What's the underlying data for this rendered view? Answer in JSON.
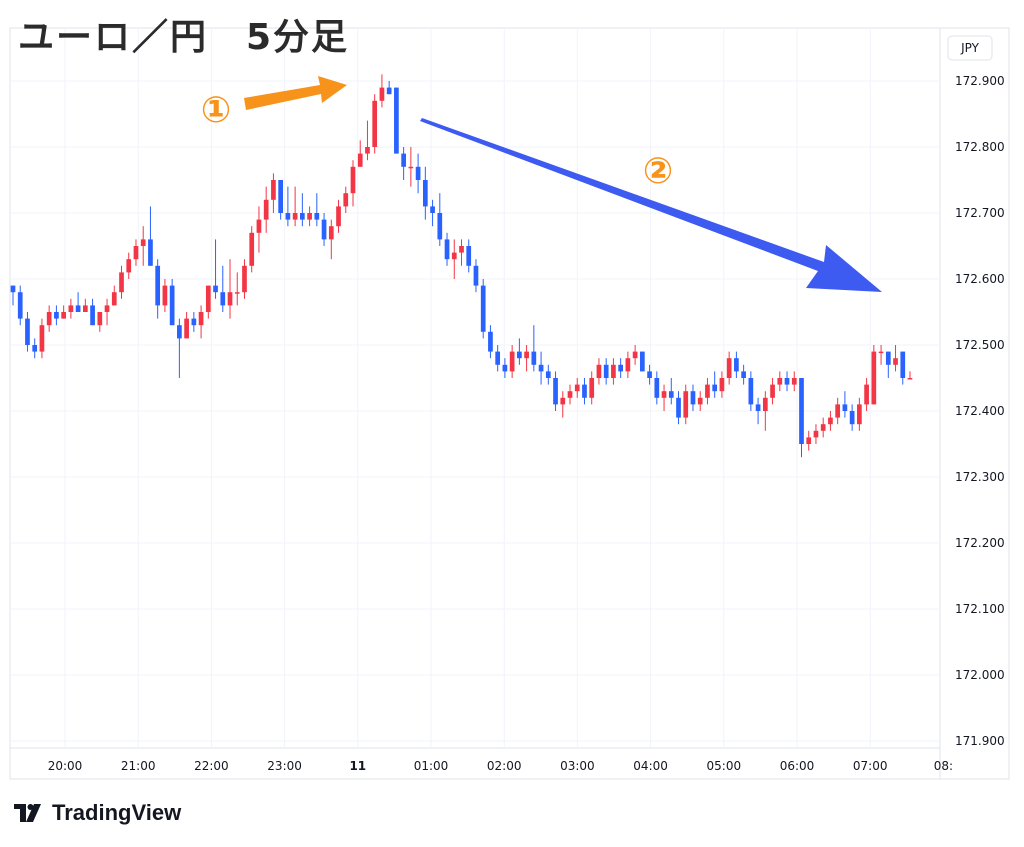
{
  "chart_data": {
    "type": "candlestick",
    "title": "ユーロ／円　5分足",
    "currency": "JPY",
    "ylim": [
      171.85,
      172.95
    ],
    "y_ticks": [
      "172.900",
      "172.800",
      "172.700",
      "172.600",
      "172.500",
      "172.400",
      "172.300",
      "172.200",
      "172.100",
      "172.000",
      "171.900"
    ],
    "x_ticks": [
      "20:00",
      "21:00",
      "22:00",
      "23:00",
      "11",
      "01:00",
      "02:00",
      "03:00",
      "04:00",
      "05:00",
      "06:00",
      "07:00",
      "08:"
    ],
    "up_color": "#f23645",
    "down_color": "#2962ff",
    "candles": [
      [
        172.59,
        172.59,
        172.56,
        172.58
      ],
      [
        172.58,
        172.59,
        172.53,
        172.54
      ],
      [
        172.54,
        172.55,
        172.49,
        172.5
      ],
      [
        172.5,
        172.51,
        172.48,
        172.49
      ],
      [
        172.49,
        172.54,
        172.48,
        172.53
      ],
      [
        172.53,
        172.56,
        172.52,
        172.55
      ],
      [
        172.55,
        172.56,
        172.53,
        172.54
      ],
      [
        172.54,
        172.56,
        172.54,
        172.55
      ],
      [
        172.55,
        172.57,
        172.54,
        172.56
      ],
      [
        172.56,
        172.58,
        172.55,
        172.55
      ],
      [
        172.55,
        172.57,
        172.55,
        172.56
      ],
      [
        172.56,
        172.57,
        172.53,
        172.53
      ],
      [
        172.53,
        172.55,
        172.52,
        172.55
      ],
      [
        172.55,
        172.57,
        172.53,
        172.56
      ],
      [
        172.56,
        172.59,
        172.56,
        172.58
      ],
      [
        172.58,
        172.62,
        172.57,
        172.61
      ],
      [
        172.61,
        172.64,
        172.6,
        172.63
      ],
      [
        172.63,
        172.66,
        172.62,
        172.65
      ],
      [
        172.65,
        172.68,
        172.62,
        172.66
      ],
      [
        172.66,
        172.71,
        172.62,
        172.62
      ],
      [
        172.62,
        172.63,
        172.54,
        172.56
      ],
      [
        172.56,
        172.6,
        172.55,
        172.59
      ],
      [
        172.59,
        172.6,
        172.53,
        172.53
      ],
      [
        172.53,
        172.54,
        172.45,
        172.51
      ],
      [
        172.51,
        172.55,
        172.51,
        172.54
      ],
      [
        172.54,
        172.55,
        172.52,
        172.53
      ],
      [
        172.53,
        172.56,
        172.51,
        172.55
      ],
      [
        172.55,
        172.59,
        172.54,
        172.59
      ],
      [
        172.59,
        172.66,
        172.57,
        172.58
      ],
      [
        172.58,
        172.62,
        172.55,
        172.56
      ],
      [
        172.56,
        172.63,
        172.54,
        172.58
      ],
      [
        172.58,
        172.61,
        172.56,
        172.58
      ],
      [
        172.58,
        172.63,
        172.57,
        172.62
      ],
      [
        172.62,
        172.68,
        172.61,
        172.67
      ],
      [
        172.67,
        172.71,
        172.64,
        172.69
      ],
      [
        172.69,
        172.74,
        172.67,
        172.72
      ],
      [
        172.72,
        172.76,
        172.7,
        172.75
      ],
      [
        172.75,
        172.75,
        172.69,
        172.7
      ],
      [
        172.7,
        172.74,
        172.68,
        172.69
      ],
      [
        172.69,
        172.74,
        172.68,
        172.7
      ],
      [
        172.7,
        172.73,
        172.68,
        172.69
      ],
      [
        172.69,
        172.71,
        172.68,
        172.7
      ],
      [
        172.7,
        172.73,
        172.68,
        172.69
      ],
      [
        172.69,
        172.7,
        172.65,
        172.66
      ],
      [
        172.66,
        172.69,
        172.63,
        172.68
      ],
      [
        172.68,
        172.72,
        172.67,
        172.71
      ],
      [
        172.71,
        172.74,
        172.7,
        172.73
      ],
      [
        172.73,
        172.78,
        172.71,
        172.77
      ],
      [
        172.77,
        172.81,
        172.77,
        172.79
      ],
      [
        172.79,
        172.84,
        172.78,
        172.8
      ],
      [
        172.8,
        172.88,
        172.79,
        172.87
      ],
      [
        172.87,
        172.91,
        172.86,
        172.89
      ],
      [
        172.89,
        172.9,
        172.88,
        172.88
      ],
      [
        172.89,
        172.89,
        172.79,
        172.79
      ],
      [
        172.79,
        172.8,
        172.75,
        172.77
      ],
      [
        172.77,
        172.8,
        172.74,
        172.77
      ],
      [
        172.77,
        172.79,
        172.73,
        172.75
      ],
      [
        172.75,
        172.77,
        172.69,
        172.71
      ],
      [
        172.71,
        172.72,
        172.68,
        172.7
      ],
      [
        172.7,
        172.73,
        172.65,
        172.66
      ],
      [
        172.66,
        172.67,
        172.62,
        172.63
      ],
      [
        172.63,
        172.66,
        172.6,
        172.64
      ],
      [
        172.64,
        172.66,
        172.62,
        172.65
      ],
      [
        172.65,
        172.66,
        172.61,
        172.62
      ],
      [
        172.62,
        172.63,
        172.58,
        172.59
      ],
      [
        172.59,
        172.6,
        172.51,
        172.52
      ],
      [
        172.52,
        172.53,
        172.48,
        172.49
      ],
      [
        172.49,
        172.5,
        172.46,
        172.47
      ],
      [
        172.47,
        172.48,
        172.45,
        172.46
      ],
      [
        172.46,
        172.5,
        172.45,
        172.49
      ],
      [
        172.49,
        172.51,
        172.47,
        172.48
      ],
      [
        172.48,
        172.5,
        172.46,
        172.49
      ],
      [
        172.49,
        172.53,
        172.46,
        172.47
      ],
      [
        172.47,
        172.49,
        172.44,
        172.46
      ],
      [
        172.46,
        172.47,
        172.44,
        172.45
      ],
      [
        172.45,
        172.46,
        172.4,
        172.41
      ],
      [
        172.41,
        172.43,
        172.39,
        172.42
      ],
      [
        172.42,
        172.44,
        172.41,
        172.43
      ],
      [
        172.43,
        172.45,
        172.42,
        172.44
      ],
      [
        172.44,
        172.45,
        172.41,
        172.42
      ],
      [
        172.42,
        172.46,
        172.41,
        172.45
      ],
      [
        172.45,
        172.48,
        172.44,
        172.47
      ],
      [
        172.47,
        172.48,
        172.44,
        172.45
      ],
      [
        172.45,
        172.48,
        172.44,
        172.47
      ],
      [
        172.47,
        172.48,
        172.45,
        172.46
      ],
      [
        172.46,
        172.49,
        172.45,
        172.48
      ],
      [
        172.48,
        172.5,
        172.47,
        172.49
      ],
      [
        172.49,
        172.49,
        172.46,
        172.46
      ],
      [
        172.46,
        172.47,
        172.44,
        172.45
      ],
      [
        172.45,
        172.46,
        172.41,
        172.42
      ],
      [
        172.42,
        172.44,
        172.4,
        172.43
      ],
      [
        172.43,
        172.45,
        172.41,
        172.42
      ],
      [
        172.42,
        172.43,
        172.38,
        172.39
      ],
      [
        172.39,
        172.44,
        172.38,
        172.43
      ],
      [
        172.43,
        172.44,
        172.4,
        172.41
      ],
      [
        172.41,
        172.43,
        172.4,
        172.42
      ],
      [
        172.42,
        172.45,
        172.41,
        172.44
      ],
      [
        172.44,
        172.46,
        172.42,
        172.43
      ],
      [
        172.43,
        172.46,
        172.42,
        172.45
      ],
      [
        172.45,
        172.49,
        172.44,
        172.48
      ],
      [
        172.48,
        172.49,
        172.45,
        172.46
      ],
      [
        172.46,
        172.47,
        172.44,
        172.45
      ],
      [
        172.45,
        172.46,
        172.4,
        172.41
      ],
      [
        172.41,
        172.42,
        172.38,
        172.4
      ],
      [
        172.4,
        172.43,
        172.37,
        172.42
      ],
      [
        172.42,
        172.45,
        172.41,
        172.44
      ],
      [
        172.44,
        172.46,
        172.43,
        172.45
      ],
      [
        172.45,
        172.46,
        172.43,
        172.44
      ],
      [
        172.44,
        172.46,
        172.43,
        172.45
      ],
      [
        172.45,
        172.45,
        172.33,
        172.35
      ],
      [
        172.35,
        172.37,
        172.34,
        172.36
      ],
      [
        172.36,
        172.38,
        172.35,
        172.37
      ],
      [
        172.37,
        172.39,
        172.36,
        172.38
      ],
      [
        172.38,
        172.4,
        172.37,
        172.39
      ],
      [
        172.39,
        172.42,
        172.38,
        172.41
      ],
      [
        172.41,
        172.43,
        172.39,
        172.4
      ],
      [
        172.4,
        172.41,
        172.37,
        172.38
      ],
      [
        172.38,
        172.42,
        172.37,
        172.41
      ],
      [
        172.41,
        172.45,
        172.4,
        172.44
      ],
      [
        172.41,
        172.5,
        172.41,
        172.49
      ],
      [
        172.49,
        172.5,
        172.47,
        172.49
      ],
      [
        172.49,
        172.49,
        172.45,
        172.47
      ],
      [
        172.47,
        172.5,
        172.46,
        172.48
      ],
      [
        172.49,
        172.49,
        172.44,
        172.45
      ],
      [
        172.45,
        172.46,
        172.45,
        172.45
      ]
    ]
  },
  "annotations": {
    "marker1": "①",
    "marker2": "②",
    "marker1_color": "#f7931a",
    "marker2_color": "#3d5af1"
  },
  "brand": {
    "logo_icon": "tradingview-logo-icon",
    "name": "TradingView"
  }
}
